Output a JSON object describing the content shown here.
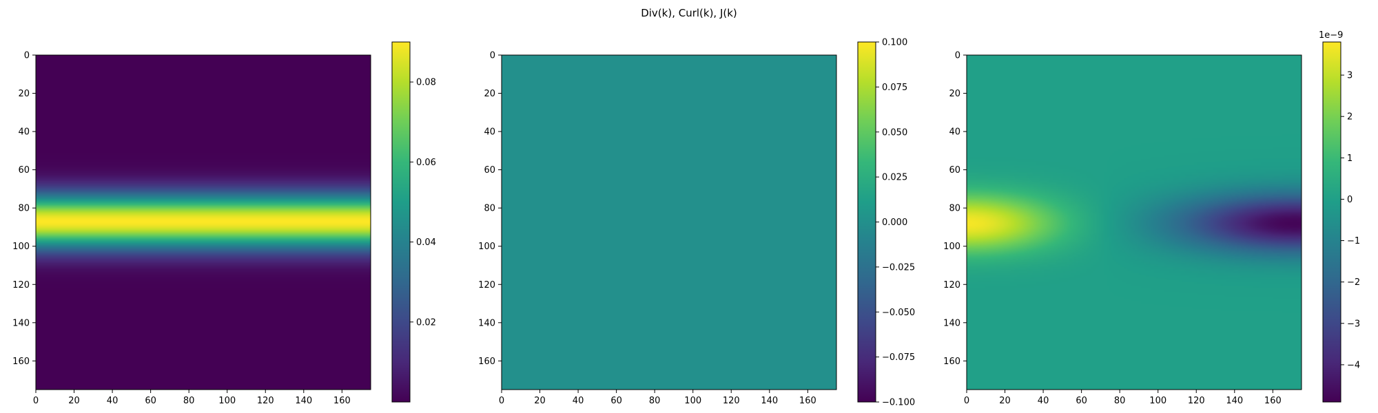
{
  "title": "Div(k), Curl(k), J(k)",
  "colormap": "viridis",
  "colormap_stops": [
    "#440154",
    "#482878",
    "#3e4989",
    "#31688e",
    "#26828e",
    "#1f9e89",
    "#35b779",
    "#6ece58",
    "#b5de2b",
    "#fde725"
  ],
  "chart_data": [
    {
      "type": "heatmap",
      "name": "Div(k)",
      "grid_size": 176,
      "xlim": [
        0,
        175
      ],
      "ylim": [
        0,
        175
      ],
      "y_inverted": true,
      "x_ticks": [
        "0",
        "20",
        "40",
        "60",
        "80",
        "100",
        "120",
        "140",
        "160"
      ],
      "y_ticks": [
        "0",
        "20",
        "40",
        "60",
        "80",
        "100",
        "120",
        "140",
        "160"
      ],
      "field": {
        "kind": "horizontal_band",
        "center_row": 87,
        "sigma_rows": 10,
        "min": 0.0,
        "max": 0.09
      },
      "colorbar": {
        "min": 0.0,
        "max": 0.09,
        "ticks": [
          "0.02",
          "0.04",
          "0.06",
          "0.08"
        ],
        "tick_values": [
          0.02,
          0.04,
          0.06,
          0.08
        ],
        "offset_text": ""
      }
    },
    {
      "type": "heatmap",
      "name": "Curl(k)",
      "grid_size": 176,
      "xlim": [
        0,
        175
      ],
      "ylim": [
        0,
        175
      ],
      "y_inverted": true,
      "x_ticks": [
        "0",
        "20",
        "40",
        "60",
        "80",
        "100",
        "120",
        "140",
        "160"
      ],
      "y_ticks": [
        "0",
        "20",
        "40",
        "60",
        "80",
        "100",
        "120",
        "140",
        "160"
      ],
      "field": {
        "kind": "constant",
        "value": 0.0
      },
      "colorbar": {
        "min": -0.1,
        "max": 0.1,
        "ticks": [
          "0.100",
          "0.075",
          "0.050",
          "0.025",
          "0.000",
          "−0.025",
          "−0.050",
          "−0.075",
          "−0.100"
        ],
        "tick_values": [
          0.1,
          0.075,
          0.05,
          0.025,
          0.0,
          -0.025,
          -0.05,
          -0.075,
          -0.1
        ],
        "offset_text": ""
      }
    },
    {
      "type": "heatmap",
      "name": "J(k)",
      "grid_size": 176,
      "xlim": [
        0,
        175
      ],
      "ylim": [
        0,
        175
      ],
      "y_inverted": true,
      "x_ticks": [
        "0",
        "20",
        "40",
        "60",
        "80",
        "100",
        "120",
        "140",
        "160"
      ],
      "y_ticks": [
        "0",
        "20",
        "40",
        "60",
        "80",
        "100",
        "120",
        "140",
        "160"
      ],
      "field": {
        "kind": "dipole",
        "center_row": 88,
        "sigma_rows": 11,
        "pos_peak": 3.7e-09,
        "pos_col": 0,
        "pos_decay_cols": 34,
        "neg_peak": -4.8e-09,
        "neg_col": 172,
        "neg_decay_cols": 44
      },
      "colorbar": {
        "min": -4.9e-09,
        "max": 3.8e-09,
        "ticks": [
          "3",
          "2",
          "1",
          "0",
          "−1",
          "−2",
          "−3",
          "−4"
        ],
        "tick_values": [
          3e-09,
          2e-09,
          1e-09,
          0,
          -1e-09,
          -2e-09,
          -3e-09,
          -4e-09
        ],
        "offset_text": "1e−9"
      }
    }
  ]
}
